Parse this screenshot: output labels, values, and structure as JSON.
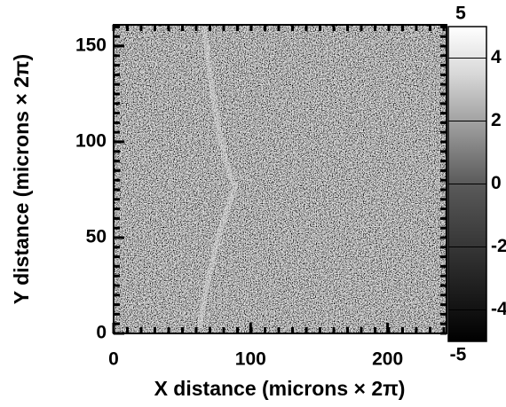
{
  "chart_data": {
    "type": "heatmap",
    "x_label": "X distance (microns × 2π)",
    "y_label": "Y distance (microns × 2π)",
    "xlim": [
      0,
      243
    ],
    "xticks": [
      0,
      100,
      200
    ],
    "ylim": [
      0,
      161
    ],
    "yticks": [
      0,
      50,
      100,
      150
    ],
    "colorbar": {
      "lim": [
        -5,
        5
      ],
      "ticks": [
        -5,
        -4,
        -2,
        0,
        2,
        4,
        5
      ],
      "colormap": "gray"
    }
  }
}
